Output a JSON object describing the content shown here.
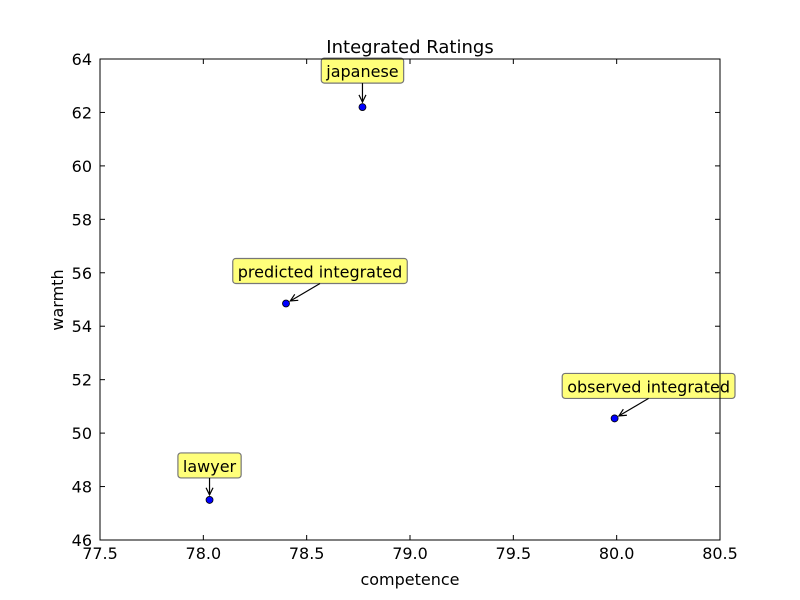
{
  "chart_data": {
    "type": "scatter",
    "title": "Integrated Ratings",
    "xlabel": "competence",
    "ylabel": "warmth",
    "xlim": [
      77.5,
      80.5
    ],
    "ylim": [
      46,
      64
    ],
    "xticks": [
      77.5,
      78.0,
      78.5,
      79.0,
      79.5,
      80.0,
      80.5
    ],
    "xtick_labels": [
      "77.5",
      "78.0",
      "78.5",
      "79.0",
      "79.5",
      "80.0",
      "80.5"
    ],
    "yticks": [
      46,
      48,
      50,
      52,
      54,
      56,
      58,
      60,
      62,
      64
    ],
    "ytick_labels": [
      "46",
      "48",
      "50",
      "52",
      "54",
      "56",
      "58",
      "60",
      "62",
      "64"
    ],
    "grid": false,
    "marker_color": "#0000ff",
    "annotation_box_color": "#ffff7a",
    "points": [
      {
        "label": "japanese",
        "x": 78.77,
        "y": 62.2
      },
      {
        "label": "predicted integrated",
        "x": 78.4,
        "y": 54.85
      },
      {
        "label": "observed integrated",
        "x": 79.99,
        "y": 50.55
      },
      {
        "label": "lawyer",
        "x": 78.03,
        "y": 47.5
      }
    ]
  }
}
